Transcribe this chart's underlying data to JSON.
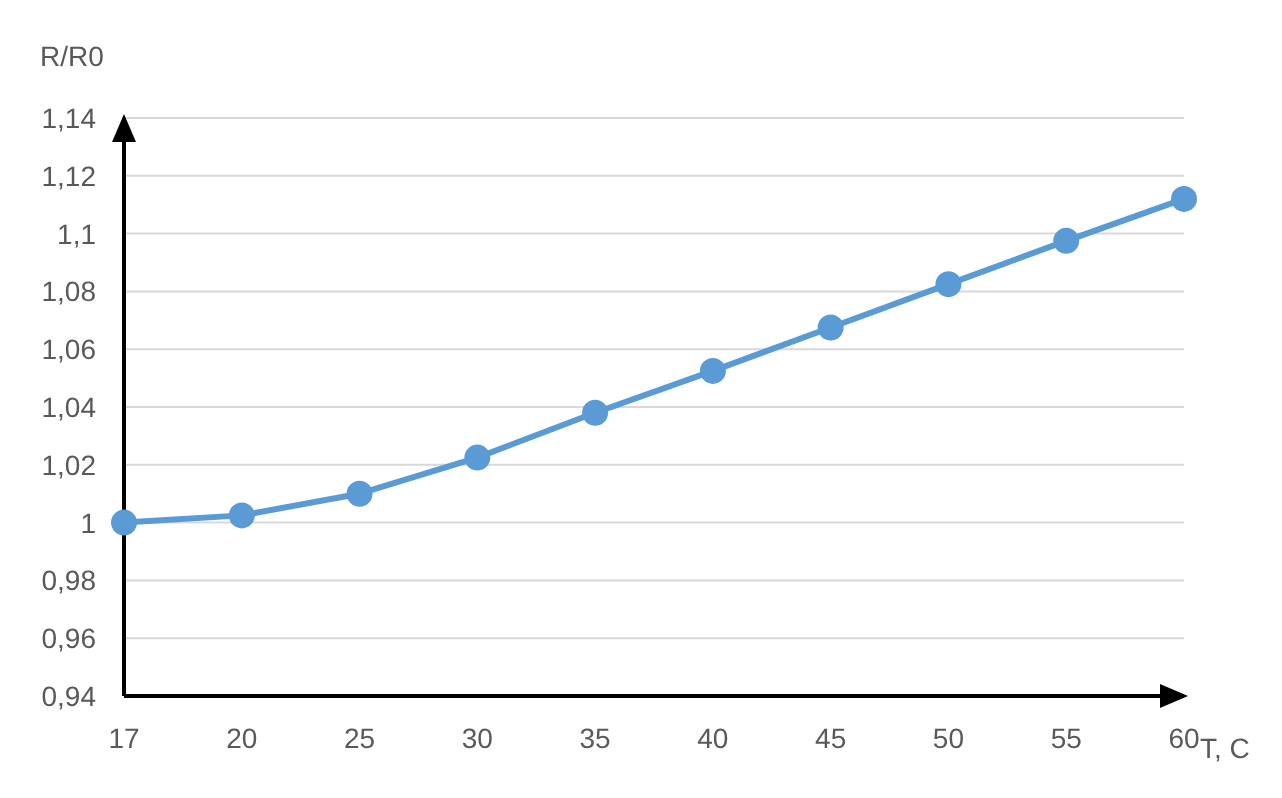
{
  "chart_data": {
    "type": "line",
    "xlabel": "T, C",
    "ylabel": "R/R0",
    "categories": [
      "17",
      "20",
      "25",
      "30",
      "35",
      "40",
      "45",
      "50",
      "55",
      "60"
    ],
    "series": [
      {
        "color": "#5b9bd5",
        "values": [
          1.0,
          1.0025,
          1.01,
          1.0225,
          1.038,
          1.0525,
          1.0675,
          1.0825,
          1.0975,
          1.112
        ]
      }
    ],
    "ylim": [
      0.94,
      1.14
    ],
    "yticks": [
      {
        "value": 0.94,
        "label": "0,94"
      },
      {
        "value": 0.96,
        "label": "0,96"
      },
      {
        "value": 0.98,
        "label": "0,98"
      },
      {
        "value": 1,
        "label": "1"
      },
      {
        "value": 1.02,
        "label": "1,02"
      },
      {
        "value": 1.04,
        "label": "1,04"
      },
      {
        "value": 1.06,
        "label": "1,06"
      },
      {
        "value": 1.08,
        "label": "1,08"
      },
      {
        "value": 1.1,
        "label": "1,1"
      },
      {
        "value": 1.12,
        "label": "1,12"
      },
      {
        "value": 1.14,
        "label": "1,14"
      }
    ],
    "grid": "y",
    "marker": "circle",
    "line_style": "solid",
    "legend": false
  }
}
